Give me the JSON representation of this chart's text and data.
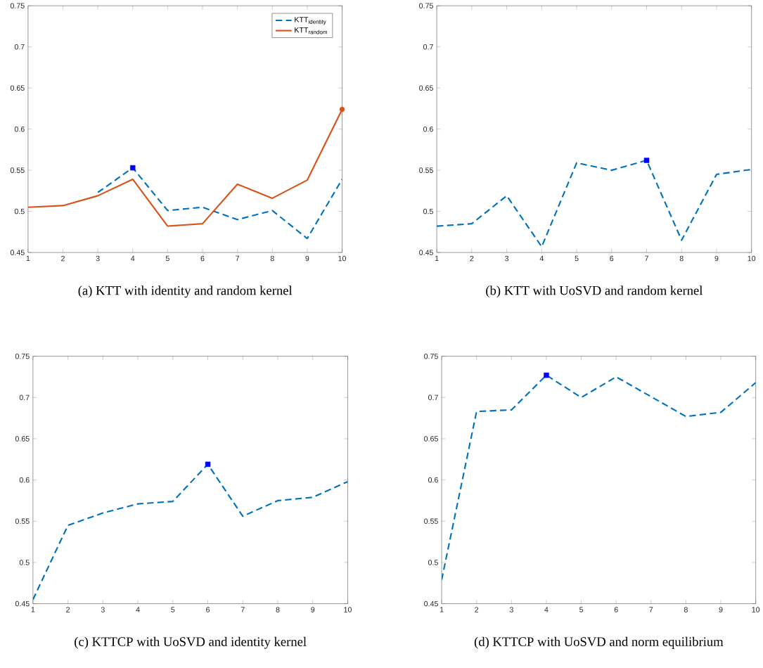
{
  "chart_data": [
    {
      "type": "line",
      "title": "(a) KTT with identity and random kernel",
      "x": [
        1,
        2,
        3,
        4,
        5,
        6,
        7,
        8,
        9,
        10
      ],
      "xlim": [
        1,
        10
      ],
      "ylim": [
        0.45,
        0.75
      ],
      "xticks": [
        1,
        2,
        3,
        4,
        5,
        6,
        7,
        8,
        9,
        10
      ],
      "yticks": [
        0.45,
        0.5,
        0.55,
        0.6,
        0.65,
        0.7,
        0.75
      ],
      "legend": "top right",
      "series": [
        {
          "name": "KTT$_{identity}$",
          "color": "#0072bd",
          "line_style": "dashed",
          "marker": "none",
          "values": [
            null,
            null,
            0.523,
            0.553,
            0.501,
            0.505,
            0.49,
            0.501,
            0.467,
            0.539
          ]
        },
        {
          "name": "KTT$_{random}$",
          "color": "#d95319",
          "line_style": "solid",
          "marker": "none",
          "values": [
            0.505,
            0.507,
            0.519,
            0.539,
            0.482,
            0.485,
            0.533,
            0.516,
            0.538,
            0.624
          ]
        },
        {
          "type": "scatter",
          "color": "#0000ff",
          "marker": "square",
          "x": [
            4
          ],
          "values": [
            0.553
          ]
        },
        {
          "type": "scatter",
          "color": "#d95319",
          "marker": "circle",
          "x": [
            10
          ],
          "values": [
            0.624
          ]
        }
      ]
    },
    {
      "type": "line",
      "title": "(b) KTT with UoSVD and random kernel",
      "x": [
        1,
        2,
        3,
        4,
        5,
        6,
        7,
        8,
        9,
        10
      ],
      "xlim": [
        1,
        10
      ],
      "ylim": [
        0.45,
        0.75
      ],
      "xticks": [
        1,
        2,
        3,
        4,
        5,
        6,
        7,
        8,
        9,
        10
      ],
      "yticks": [
        0.45,
        0.5,
        0.55,
        0.6,
        0.65,
        0.7,
        0.75
      ],
      "series": [
        {
          "color": "#0072bd",
          "line_style": "dashed",
          "marker": "none",
          "values": [
            0.482,
            0.485,
            0.519,
            0.457,
            0.559,
            0.55,
            0.562,
            0.465,
            0.545,
            0.551
          ]
        },
        {
          "type": "scatter",
          "color": "#0000ff",
          "marker": "square",
          "x": [
            7
          ],
          "values": [
            0.562
          ]
        }
      ]
    },
    {
      "type": "line",
      "title": "(c)  KTTCP with UoSVD and identity kernel",
      "x": [
        1,
        2,
        3,
        4,
        5,
        6,
        7,
        8,
        9,
        10
      ],
      "xlim": [
        1,
        10
      ],
      "ylim": [
        0.45,
        0.75
      ],
      "xticks": [
        1,
        2,
        3,
        4,
        5,
        6,
        7,
        8,
        9,
        10
      ],
      "yticks": [
        0.45,
        0.5,
        0.55,
        0.6,
        0.65,
        0.7,
        0.75
      ],
      "series": [
        {
          "color": "#0072bd",
          "line_style": "dashed",
          "marker": "none",
          "values": [
            0.455,
            0.545,
            0.56,
            0.571,
            0.574,
            0.619,
            0.556,
            0.575,
            0.579,
            0.598
          ]
        },
        {
          "type": "scatter",
          "color": "#0000ff",
          "marker": "square",
          "x": [
            6
          ],
          "values": [
            0.619
          ]
        }
      ]
    },
    {
      "type": "line",
      "title": "(d) KTTCP with UoSVD and norm equilibrium",
      "x": [
        1,
        2,
        3,
        4,
        5,
        6,
        7,
        8,
        9,
        10
      ],
      "xlim": [
        1,
        10
      ],
      "ylim": [
        0.45,
        0.75
      ],
      "xticks": [
        1,
        2,
        3,
        4,
        5,
        6,
        7,
        8,
        9,
        10
      ],
      "yticks": [
        0.45,
        0.5,
        0.55,
        0.6,
        0.65,
        0.7,
        0.75
      ],
      "series": [
        {
          "color": "#0072bd",
          "line_style": "dashed",
          "marker": "none",
          "values": [
            0.479,
            0.683,
            0.685,
            0.727,
            0.7,
            0.725,
            0.701,
            0.677,
            0.682,
            0.718
          ]
        },
        {
          "type": "scatter",
          "color": "#0000ff",
          "marker": "square",
          "x": [
            4
          ],
          "values": [
            0.727
          ]
        }
      ]
    }
  ]
}
